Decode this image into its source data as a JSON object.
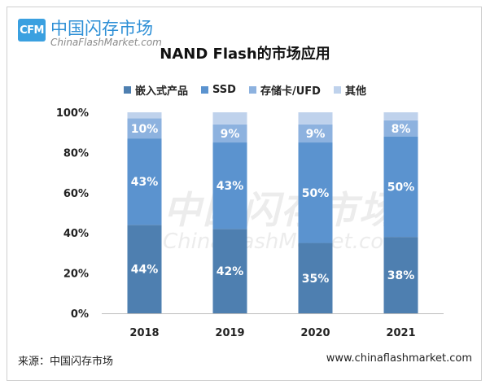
{
  "header": {
    "logo_badge": "CFM",
    "logo_cn": "中国闪存市场",
    "logo_en": "ChinaFlashMarket.com"
  },
  "watermark": {
    "cn": "中国闪存市场",
    "en": "ChinaFlashMarket.com"
  },
  "footer": {
    "source": "来源：中国闪存市场",
    "site": "www.chinaflashmarket.com"
  },
  "chart_data": {
    "type": "bar",
    "stacked": true,
    "title": "NAND Flash的市场应用",
    "xlabel": "",
    "ylabel": "",
    "categories": [
      "2018",
      "2019",
      "2020",
      "2021"
    ],
    "ylim": [
      0,
      100
    ],
    "yticks": [
      "0%",
      "20%",
      "40%",
      "60%",
      "80%",
      "100%"
    ],
    "grid": false,
    "legend_position": "top",
    "series": [
      {
        "name": "嵌入式产品",
        "color": "#4e7fb0",
        "values": [
          44,
          42,
          35,
          38
        ],
        "labels": [
          "44%",
          "42%",
          "35%",
          "38%"
        ]
      },
      {
        "name": "SSD",
        "color": "#5b93cf",
        "values": [
          43,
          43,
          50,
          50
        ],
        "labels": [
          "43%",
          "43%",
          "50%",
          "50%"
        ]
      },
      {
        "name": "存储卡/UFD",
        "color": "#8db2df",
        "values": [
          10,
          9,
          9,
          8
        ],
        "labels": [
          "10%",
          "9%",
          "9%",
          "8%"
        ]
      },
      {
        "name": "其他",
        "color": "#bfd2ec",
        "values": [
          3,
          6,
          6,
          4
        ],
        "labels": [
          "",
          "",
          "",
          ""
        ]
      }
    ]
  }
}
